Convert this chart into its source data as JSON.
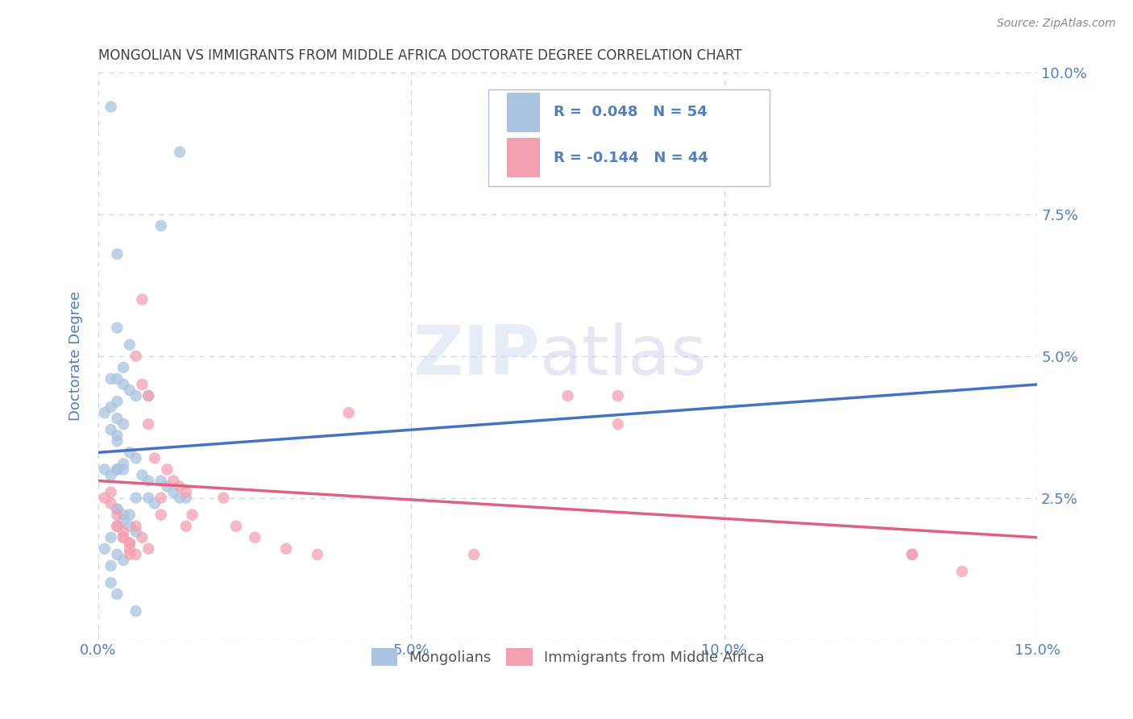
{
  "title": "MONGOLIAN VS IMMIGRANTS FROM MIDDLE AFRICA DOCTORATE DEGREE CORRELATION CHART",
  "source": "Source: ZipAtlas.com",
  "ylabel": "Doctorate Degree",
  "xlim": [
    0.0,
    0.15
  ],
  "ylim": [
    0.0,
    0.1
  ],
  "xticks": [
    0.0,
    0.05,
    0.1,
    0.15
  ],
  "yticks": [
    0.0,
    0.025,
    0.05,
    0.075,
    0.1
  ],
  "ytick_labels": [
    "",
    "2.5%",
    "5.0%",
    "7.5%",
    "10.0%"
  ],
  "mongolian_color": "#a8c4e0",
  "immigrant_color": "#f4a0b0",
  "mongolian_line_color": "#4472c4",
  "immigrant_line_color": "#e06080",
  "R_mongolian": 0.048,
  "N_mongolian": 54,
  "R_immigrant": -0.144,
  "N_immigrant": 44,
  "legend_label_mongolian": "Mongolians",
  "legend_label_immigrant": "Immigrants from Middle Africa",
  "watermark_zip": "ZIP",
  "watermark_atlas": "atlas",
  "background_color": "#ffffff",
  "grid_color": "#c8d4e8",
  "title_color": "#404040",
  "axis_color": "#5080c0",
  "mongolian_line_y0": 0.033,
  "mongolian_line_y1": 0.045,
  "immigrant_line_y0": 0.028,
  "immigrant_line_y1": 0.018,
  "mongolian_scatter_x": [
    0.002,
    0.013,
    0.01,
    0.003,
    0.005,
    0.004,
    0.003,
    0.004,
    0.005,
    0.006,
    0.008,
    0.003,
    0.002,
    0.001,
    0.003,
    0.004,
    0.002,
    0.003,
    0.003,
    0.005,
    0.006,
    0.004,
    0.003,
    0.007,
    0.008,
    0.01,
    0.011,
    0.012,
    0.013,
    0.014,
    0.003,
    0.004,
    0.005,
    0.006,
    0.002,
    0.001,
    0.003,
    0.004,
    0.002,
    0.003,
    0.004,
    0.001,
    0.002,
    0.006,
    0.008,
    0.009,
    0.003,
    0.005,
    0.004,
    0.002,
    0.003,
    0.006,
    0.002,
    0.003
  ],
  "mongolian_scatter_y": [
    0.094,
    0.086,
    0.073,
    0.055,
    0.052,
    0.048,
    0.046,
    0.045,
    0.044,
    0.043,
    0.043,
    0.042,
    0.041,
    0.04,
    0.039,
    0.038,
    0.037,
    0.036,
    0.035,
    0.033,
    0.032,
    0.031,
    0.03,
    0.029,
    0.028,
    0.028,
    0.027,
    0.026,
    0.025,
    0.025,
    0.023,
    0.022,
    0.02,
    0.019,
    0.018,
    0.016,
    0.015,
    0.014,
    0.013,
    0.03,
    0.03,
    0.03,
    0.029,
    0.025,
    0.025,
    0.024,
    0.023,
    0.022,
    0.021,
    0.01,
    0.008,
    0.005,
    0.046,
    0.068
  ],
  "immigrant_scatter_x": [
    0.001,
    0.002,
    0.003,
    0.003,
    0.004,
    0.004,
    0.005,
    0.005,
    0.005,
    0.006,
    0.006,
    0.007,
    0.007,
    0.008,
    0.008,
    0.009,
    0.01,
    0.01,
    0.011,
    0.012,
    0.013,
    0.014,
    0.014,
    0.015,
    0.02,
    0.022,
    0.025,
    0.03,
    0.035,
    0.04,
    0.002,
    0.003,
    0.004,
    0.005,
    0.006,
    0.007,
    0.008,
    0.06,
    0.075,
    0.083,
    0.083,
    0.13,
    0.13,
    0.138
  ],
  "immigrant_scatter_y": [
    0.025,
    0.024,
    0.022,
    0.02,
    0.019,
    0.018,
    0.017,
    0.016,
    0.015,
    0.015,
    0.05,
    0.06,
    0.045,
    0.043,
    0.038,
    0.032,
    0.025,
    0.022,
    0.03,
    0.028,
    0.027,
    0.026,
    0.02,
    0.022,
    0.025,
    0.02,
    0.018,
    0.016,
    0.015,
    0.04,
    0.026,
    0.02,
    0.018,
    0.017,
    0.02,
    0.018,
    0.016,
    0.015,
    0.043,
    0.043,
    0.038,
    0.015,
    0.015,
    0.012
  ]
}
